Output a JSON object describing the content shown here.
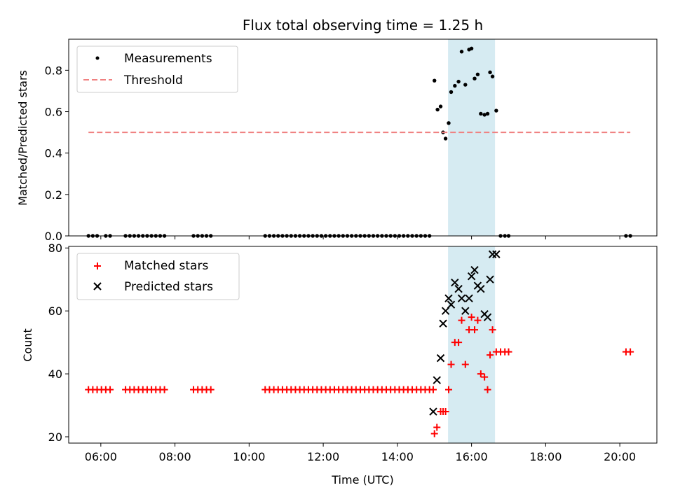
{
  "chart_data": [
    {
      "type": "scatter",
      "title": "Flux total observing time = 1.25 h",
      "xlabel": "",
      "ylabel": "Matched/Predicted stars",
      "xlim": [
        "05:08",
        "21:00"
      ],
      "ylim": [
        0,
        0.95
      ],
      "yticks": [
        0.0,
        0.2,
        0.4,
        0.6,
        0.8
      ],
      "ytick_labels": [
        "0.0",
        "0.2",
        "0.4",
        "0.6",
        "0.8"
      ],
      "legend_position": "top-left",
      "highlight_span": {
        "start": "15:22",
        "end": "16:38",
        "color": "#add8e6"
      },
      "series": [
        {
          "name": "Measurements",
          "marker": "dot",
          "color": "#000000",
          "x": [
            "05:40",
            "05:47",
            "05:54",
            "06:08",
            "06:15",
            "06:40",
            "06:47",
            "06:54",
            "07:01",
            "07:08",
            "07:15",
            "07:22",
            "07:29",
            "07:36",
            "07:43",
            "08:30",
            "08:37",
            "08:44",
            "08:51",
            "08:58",
            "10:26",
            "10:33",
            "10:40",
            "10:47",
            "10:54",
            "11:01",
            "11:08",
            "11:15",
            "11:22",
            "11:29",
            "11:36",
            "11:43",
            "11:50",
            "11:57",
            "12:04",
            "12:11",
            "12:18",
            "12:25",
            "12:32",
            "12:39",
            "12:46",
            "12:53",
            "13:00",
            "13:07",
            "13:14",
            "13:21",
            "13:28",
            "13:35",
            "13:42",
            "13:49",
            "13:56",
            "14:03",
            "14:10",
            "14:17",
            "14:24",
            "14:31",
            "14:38",
            "14:45",
            "14:52",
            "15:00",
            "15:05",
            "15:10",
            "15:14",
            "15:18",
            "15:23",
            "15:27",
            "15:33",
            "15:39",
            "15:44",
            "15:50",
            "15:56",
            "16:00",
            "16:05",
            "16:10",
            "16:15",
            "16:21",
            "16:26",
            "16:30",
            "16:34",
            "16:40",
            "16:47",
            "16:54",
            "17:00",
            "20:10",
            "20:17"
          ],
          "y": [
            0,
            0,
            0,
            0,
            0,
            0,
            0,
            0,
            0,
            0,
            0,
            0,
            0,
            0,
            0,
            0,
            0,
            0,
            0,
            0,
            0,
            0,
            0,
            0,
            0,
            0,
            0,
            0,
            0,
            0,
            0,
            0,
            0,
            0,
            0,
            0,
            0,
            0,
            0,
            0,
            0,
            0,
            0,
            0,
            0,
            0,
            0,
            0,
            0,
            0,
            0,
            0,
            0,
            0,
            0,
            0,
            0,
            0,
            0,
            0.75,
            0.61,
            0.625,
            0.5,
            0.47,
            0.545,
            0.695,
            0.725,
            0.745,
            0.89,
            0.73,
            0.9,
            0.905,
            0.76,
            0.78,
            0.59,
            0.585,
            0.59,
            0.79,
            0.77,
            0.605,
            0,
            0,
            0,
            0,
            0
          ]
        },
        {
          "name": "Threshold",
          "marker": "dashed-line",
          "color": "#f08080",
          "x": [
            "05:40",
            "20:17"
          ],
          "y": [
            0.5,
            0.5
          ]
        }
      ]
    },
    {
      "type": "scatter",
      "title": "",
      "xlabel": "Time (UTC)",
      "ylabel": "Count",
      "xlim": [
        "05:08",
        "21:00"
      ],
      "ylim": [
        18,
        80.5
      ],
      "yticks": [
        20,
        40,
        60,
        80
      ],
      "xticks": [
        "06:00",
        "08:00",
        "10:00",
        "12:00",
        "14:00",
        "16:00",
        "18:00",
        "20:00"
      ],
      "legend_position": "top-left",
      "highlight_span": {
        "start": "15:22",
        "end": "16:38",
        "color": "#add8e6"
      },
      "series": [
        {
          "name": "Matched stars",
          "marker": "plus",
          "color": "#ff0000",
          "x": [
            "05:40",
            "05:47",
            "05:54",
            "06:01",
            "06:08",
            "06:15",
            "06:40",
            "06:47",
            "06:54",
            "07:01",
            "07:08",
            "07:15",
            "07:22",
            "07:29",
            "07:36",
            "07:43",
            "08:30",
            "08:37",
            "08:44",
            "08:51",
            "08:58",
            "10:26",
            "10:33",
            "10:40",
            "10:47",
            "10:54",
            "11:01",
            "11:08",
            "11:15",
            "11:22",
            "11:29",
            "11:36",
            "11:43",
            "11:50",
            "11:57",
            "12:04",
            "12:11",
            "12:18",
            "12:25",
            "12:32",
            "12:39",
            "12:46",
            "12:53",
            "13:00",
            "13:07",
            "13:14",
            "13:21",
            "13:28",
            "13:35",
            "13:42",
            "13:49",
            "13:56",
            "14:03",
            "14:10",
            "14:17",
            "14:24",
            "14:31",
            "14:38",
            "14:45",
            "14:52",
            "14:58",
            "15:00",
            "15:04",
            "15:10",
            "15:14",
            "15:18",
            "15:23",
            "15:27",
            "15:33",
            "15:39",
            "15:44",
            "15:50",
            "15:56",
            "16:00",
            "16:05",
            "16:10",
            "16:15",
            "16:21",
            "16:26",
            "16:30",
            "16:34",
            "16:40",
            "16:47",
            "16:54",
            "17:00",
            "20:10",
            "20:17"
          ],
          "y": [
            35,
            35,
            35,
            35,
            35,
            35,
            35,
            35,
            35,
            35,
            35,
            35,
            35,
            35,
            35,
            35,
            35,
            35,
            35,
            35,
            35,
            35,
            35,
            35,
            35,
            35,
            35,
            35,
            35,
            35,
            35,
            35,
            35,
            35,
            35,
            35,
            35,
            35,
            35,
            35,
            35,
            35,
            35,
            35,
            35,
            35,
            35,
            35,
            35,
            35,
            35,
            35,
            35,
            35,
            35,
            35,
            35,
            35,
            35,
            35,
            35,
            21,
            23,
            28,
            28,
            28,
            35,
            43,
            50,
            50,
            57,
            43,
            54,
            58,
            54,
            57,
            40,
            39,
            35,
            46,
            54,
            47,
            47,
            47,
            47,
            47,
            47
          ]
        },
        {
          "name": "Predicted stars",
          "marker": "x",
          "color": "#000000",
          "x": [
            "14:58",
            "15:04",
            "15:10",
            "15:14",
            "15:18",
            "15:23",
            "15:27",
            "15:33",
            "15:39",
            "15:44",
            "15:50",
            "15:56",
            "16:00",
            "16:05",
            "16:10",
            "16:15",
            "16:21",
            "16:26",
            "16:30",
            "16:34",
            "16:40"
          ],
          "y": [
            28,
            38,
            45,
            56,
            60,
            64,
            62,
            69,
            67,
            64,
            60,
            64,
            71,
            73,
            68,
            67,
            59,
            58,
            70,
            78,
            78
          ]
        }
      ]
    }
  ]
}
